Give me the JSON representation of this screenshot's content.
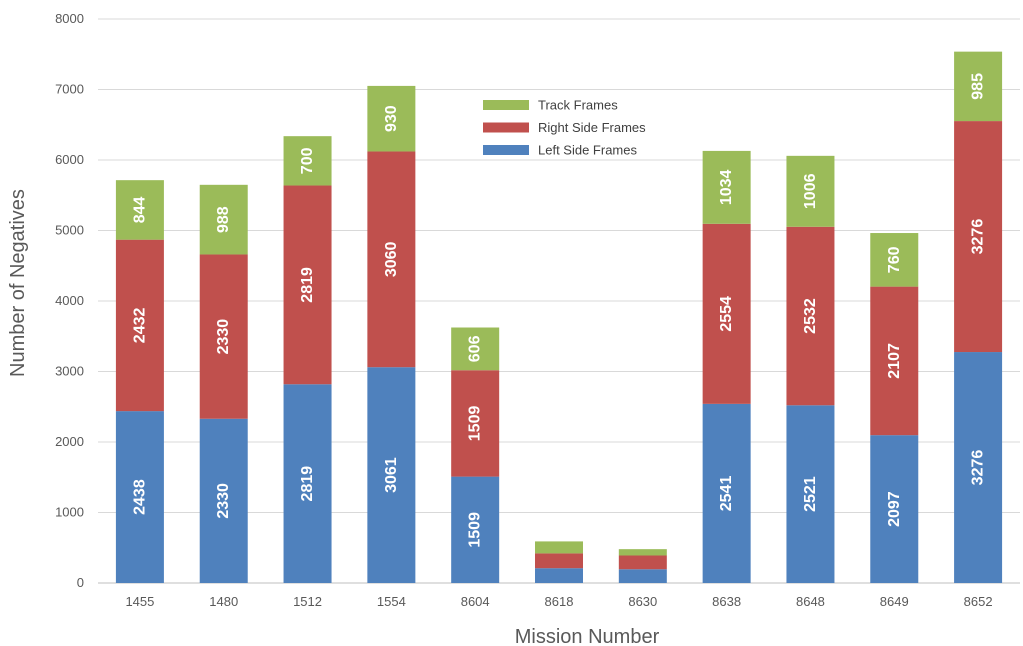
{
  "chart_data": {
    "type": "bar",
    "stacked": true,
    "title": "",
    "xlabel": "Mission Number",
    "ylabel": "Number of Negatives",
    "ylim": [
      0,
      8000
    ],
    "yticks": [
      0,
      1000,
      2000,
      3000,
      4000,
      5000,
      6000,
      7000,
      8000
    ],
    "grid": true,
    "legend_position": "top-center",
    "categories": [
      "1455",
      "1480",
      "1512",
      "1554",
      "8604",
      "8618",
      "8630",
      "8638",
      "8648",
      "8649",
      "8652"
    ],
    "series": [
      {
        "name": "Left Side Frames",
        "color": "#4f81bd",
        "values": [
          2438,
          2330,
          2819,
          3061,
          1509,
          210,
          195,
          2541,
          2521,
          2097,
          3276
        ],
        "labels": [
          "2438",
          "2330",
          "2819",
          "3061",
          "1509",
          "",
          "",
          "2541",
          "2521",
          "2097",
          "3276"
        ]
      },
      {
        "name": "Right Side Frames",
        "color": "#c0504d",
        "values": [
          2432,
          2330,
          2819,
          3060,
          1509,
          210,
          195,
          2554,
          2532,
          2107,
          3276
        ],
        "labels": [
          "2432",
          "2330",
          "2819",
          "3060",
          "1509",
          "",
          "",
          "2554",
          "2532",
          "2107",
          "3276"
        ]
      },
      {
        "name": "Track Frames",
        "color": "#9bbb59",
        "values": [
          844,
          988,
          700,
          930,
          606,
          170,
          90,
          1034,
          1006,
          760,
          985
        ],
        "labels": [
          "844",
          "988",
          "700",
          "930",
          "606",
          "",
          "",
          "1034",
          "1006",
          "760",
          "985"
        ]
      }
    ],
    "legend_order": [
      "Track Frames",
      "Right Side Frames",
      "Left Side Frames"
    ]
  }
}
